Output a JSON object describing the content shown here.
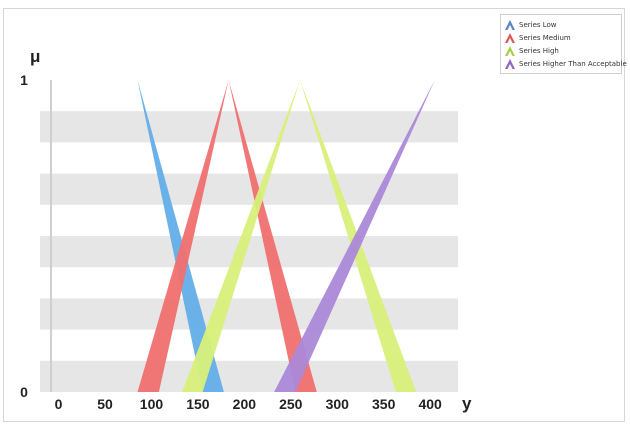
{
  "chart_data": {
    "type": "area",
    "xlabel": "y",
    "ylabel": "μ",
    "xlim": [
      -20,
      430
    ],
    "ylim": [
      0,
      1
    ],
    "x_ticks": [
      0,
      50,
      100,
      150,
      200,
      250,
      300,
      350,
      400
    ],
    "y_ticks": [
      0,
      1
    ],
    "legend_position": "top-right",
    "grid": "alternating horizontal bands",
    "series": [
      {
        "name": "Series Low",
        "color": "#62aee8",
        "legend_color": "#5b84c4",
        "outer": [
          [
            85,
            1
          ],
          [
            178,
            0
          ]
        ],
        "inner": [
          [
            85,
            1
          ],
          [
            155,
            0
          ]
        ]
      },
      {
        "name": "Series Medium",
        "color": "#f07070",
        "legend_color": "#d95b5b",
        "outer": [
          [
            85,
            0
          ],
          [
            183,
            1
          ],
          [
            278,
            0
          ]
        ],
        "inner": [
          [
            108,
            0
          ],
          [
            183,
            1
          ],
          [
            255,
            0
          ]
        ]
      },
      {
        "name": "Series High",
        "color": "#d8f07a",
        "legend_color": "#a8cf4a",
        "outer": [
          [
            133,
            0
          ],
          [
            260,
            1
          ],
          [
            385,
            0
          ]
        ],
        "inner": [
          [
            155,
            0
          ],
          [
            260,
            1
          ],
          [
            363,
            0
          ]
        ]
      },
      {
        "name": "Series Higher Than Acceptable",
        "color": "#ab88d8",
        "legend_color": "#8e68c2",
        "outer": [
          [
            232,
            0
          ],
          [
            405,
            1
          ]
        ],
        "inner": [
          [
            255,
            0
          ],
          [
            405,
            1
          ]
        ]
      }
    ]
  }
}
